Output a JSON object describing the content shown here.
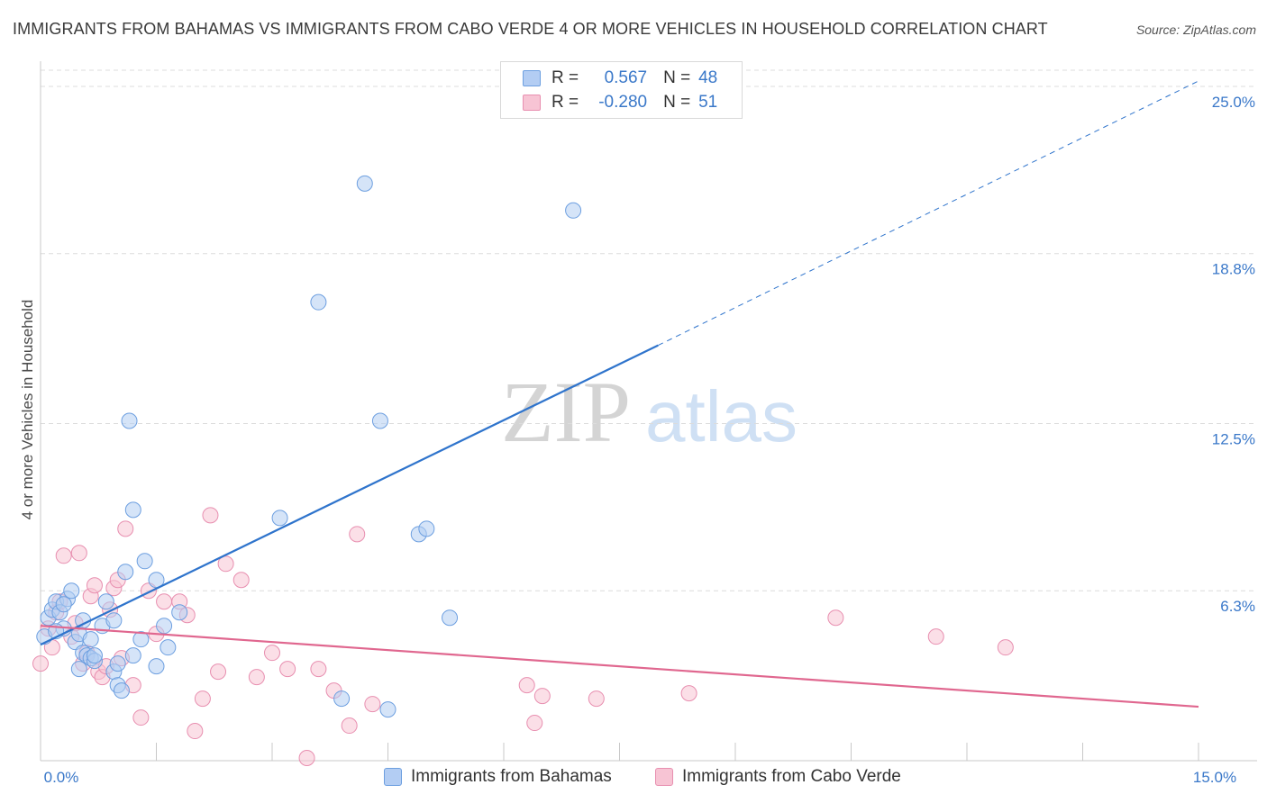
{
  "title": "IMMIGRANTS FROM BAHAMAS VS IMMIGRANTS FROM CABO VERDE 4 OR MORE VEHICLES IN HOUSEHOLD CORRELATION CHART",
  "source": "Source: ZipAtlas.com",
  "watermark": {
    "zip": "ZIP",
    "atlas": "atlas"
  },
  "colors": {
    "bahamas_fill": "#b3cdf3",
    "bahamas_stroke": "#6d9fe0",
    "bahamas_line": "#2f74cc",
    "caboverde_fill": "#f7c4d4",
    "caboverde_stroke": "#e88fb0",
    "caboverde_line": "#e0678f",
    "tick_text": "#3a78c9",
    "grid": "#dcdcdc"
  },
  "legend": {
    "rows": [
      {
        "r_label": "R =",
        "r_value": "0.567",
        "n_label": "N =",
        "n_value": "48"
      },
      {
        "r_label": "R =",
        "r_value": "-0.280",
        "n_label": "N =",
        "n_value": "51"
      }
    ]
  },
  "bottom_legend": [
    "Immigrants from Bahamas",
    "Immigrants from Cabo Verde"
  ],
  "chart_data": {
    "type": "scatter",
    "title": "IMMIGRANTS FROM BAHAMAS VS IMMIGRANTS FROM CABO VERDE 4 OR MORE VEHICLES IN HOUSEHOLD CORRELATION CHART",
    "xlabel": "",
    "ylabel": "4 or more Vehicles in Household",
    "xlim": [
      0,
      15
    ],
    "ylim": [
      0,
      25.6
    ],
    "x_tick_labels": [
      "0.0%",
      "15.0%"
    ],
    "y_ticks": [
      6.3,
      12.5,
      18.8,
      25.0
    ],
    "y_tick_labels": [
      "6.3%",
      "12.5%",
      "18.8%",
      "25.0%"
    ],
    "grid": true,
    "series": [
      {
        "name": "Immigrants from Bahamas",
        "r": 0.567,
        "n": 48,
        "trend": {
          "x0": 0.0,
          "y0": 4.3,
          "x1": 8.0,
          "y1": 15.4,
          "dashed_to_x": 15.0,
          "dashed_to_y": 25.2
        },
        "points": [
          [
            0.1,
            5.3
          ],
          [
            0.15,
            5.6
          ],
          [
            0.2,
            5.9
          ],
          [
            0.25,
            5.5
          ],
          [
            0.3,
            4.9
          ],
          [
            0.35,
            6.0
          ],
          [
            0.3,
            5.8
          ],
          [
            0.4,
            6.3
          ],
          [
            0.45,
            4.4
          ],
          [
            0.5,
            4.7
          ],
          [
            0.55,
            5.2
          ],
          [
            0.5,
            3.4
          ],
          [
            0.55,
            4.0
          ],
          [
            0.6,
            3.9
          ],
          [
            0.65,
            3.8
          ],
          [
            0.65,
            4.5
          ],
          [
            0.7,
            3.7
          ],
          [
            0.7,
            3.9
          ],
          [
            0.8,
            5.0
          ],
          [
            0.85,
            5.9
          ],
          [
            0.95,
            3.3
          ],
          [
            1.0,
            2.8
          ],
          [
            1.05,
            2.6
          ],
          [
            1.1,
            7.0
          ],
          [
            1.15,
            12.6
          ],
          [
            1.2,
            9.3
          ],
          [
            1.3,
            4.5
          ],
          [
            1.35,
            7.4
          ],
          [
            1.5,
            6.7
          ],
          [
            1.5,
            3.5
          ],
          [
            1.6,
            5.0
          ],
          [
            1.65,
            4.2
          ],
          [
            1.8,
            5.5
          ],
          [
            3.1,
            9.0
          ],
          [
            3.6,
            17.0
          ],
          [
            3.9,
            2.3
          ],
          [
            4.2,
            21.4
          ],
          [
            4.4,
            12.6
          ],
          [
            4.5,
            1.9
          ],
          [
            4.9,
            8.4
          ],
          [
            5.0,
            8.6
          ],
          [
            5.3,
            5.3
          ],
          [
            6.9,
            20.4
          ],
          [
            0.05,
            4.6
          ],
          [
            0.2,
            4.8
          ],
          [
            0.95,
            5.2
          ],
          [
            1.0,
            3.6
          ],
          [
            1.2,
            3.9
          ]
        ]
      },
      {
        "name": "Immigrants from Cabo Verde",
        "r": -0.28,
        "n": 51,
        "trend": {
          "x0": 0.0,
          "y0": 5.0,
          "x1": 15.0,
          "y1": 2.0
        },
        "points": [
          [
            0.0,
            3.6
          ],
          [
            0.1,
            4.9
          ],
          [
            0.15,
            4.2
          ],
          [
            0.2,
            5.5
          ],
          [
            0.25,
            5.9
          ],
          [
            0.3,
            7.6
          ],
          [
            0.4,
            4.6
          ],
          [
            0.45,
            5.1
          ],
          [
            0.5,
            7.7
          ],
          [
            0.55,
            3.6
          ],
          [
            0.6,
            4.0
          ],
          [
            0.65,
            6.1
          ],
          [
            0.7,
            6.5
          ],
          [
            0.75,
            3.3
          ],
          [
            0.8,
            3.1
          ],
          [
            0.85,
            3.5
          ],
          [
            0.9,
            5.6
          ],
          [
            0.95,
            6.4
          ],
          [
            1.0,
            6.7
          ],
          [
            1.05,
            3.8
          ],
          [
            1.1,
            8.6
          ],
          [
            1.2,
            2.8
          ],
          [
            1.3,
            1.6
          ],
          [
            1.4,
            6.3
          ],
          [
            1.5,
            4.7
          ],
          [
            1.6,
            5.9
          ],
          [
            1.8,
            5.9
          ],
          [
            1.9,
            5.4
          ],
          [
            2.0,
            1.1
          ],
          [
            2.1,
            2.3
          ],
          [
            2.2,
            9.1
          ],
          [
            2.3,
            3.3
          ],
          [
            2.4,
            7.3
          ],
          [
            2.6,
            6.7
          ],
          [
            2.8,
            3.1
          ],
          [
            3.0,
            4.0
          ],
          [
            3.2,
            3.4
          ],
          [
            3.45,
            0.1
          ],
          [
            3.6,
            3.4
          ],
          [
            3.8,
            2.6
          ],
          [
            4.0,
            1.3
          ],
          [
            4.1,
            8.4
          ],
          [
            4.3,
            2.1
          ],
          [
            6.3,
            2.8
          ],
          [
            6.4,
            1.4
          ],
          [
            6.5,
            2.4
          ],
          [
            7.2,
            2.3
          ],
          [
            8.4,
            2.5
          ],
          [
            10.3,
            5.3
          ],
          [
            11.6,
            4.6
          ],
          [
            12.5,
            4.2
          ]
        ]
      }
    ]
  }
}
